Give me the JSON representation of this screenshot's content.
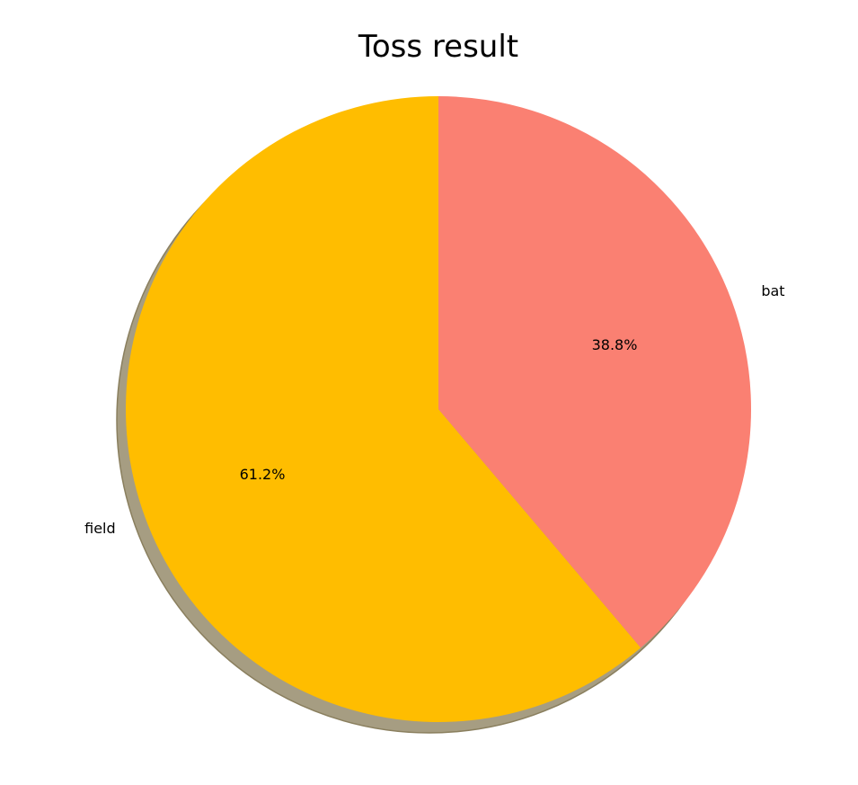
{
  "chart_data": {
    "type": "pie",
    "title": "Toss result",
    "labels": [
      "field",
      "bat"
    ],
    "values": [
      61.2,
      38.8
    ],
    "percent_labels": [
      "61.2%",
      "38.8%"
    ],
    "colors": [
      "#ffbd00",
      "#fa8072"
    ],
    "shadow": true,
    "shadow_color": "#a69d82",
    "start_angle_deg": 90,
    "direction": "counterclockwise"
  }
}
